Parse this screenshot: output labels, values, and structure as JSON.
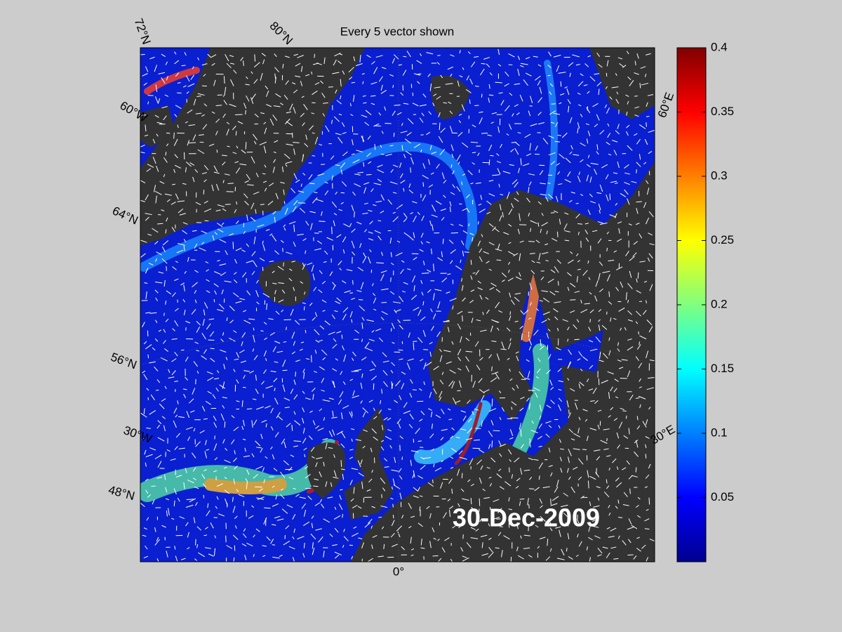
{
  "title": "Every 5 vector shown",
  "date_label": "30-Dec-2009",
  "graticule_labels": [
    "72°N",
    "80°N",
    "60°W",
    "64°N",
    "56°N",
    "30°W",
    "48°N",
    "0°",
    "60°E",
    "30°E"
  ],
  "colorbar": {
    "lim": [
      0,
      0.4
    ],
    "ticks": [
      0.05,
      0.1,
      0.15,
      0.2,
      0.25,
      0.3,
      0.35,
      0.4
    ]
  }
}
